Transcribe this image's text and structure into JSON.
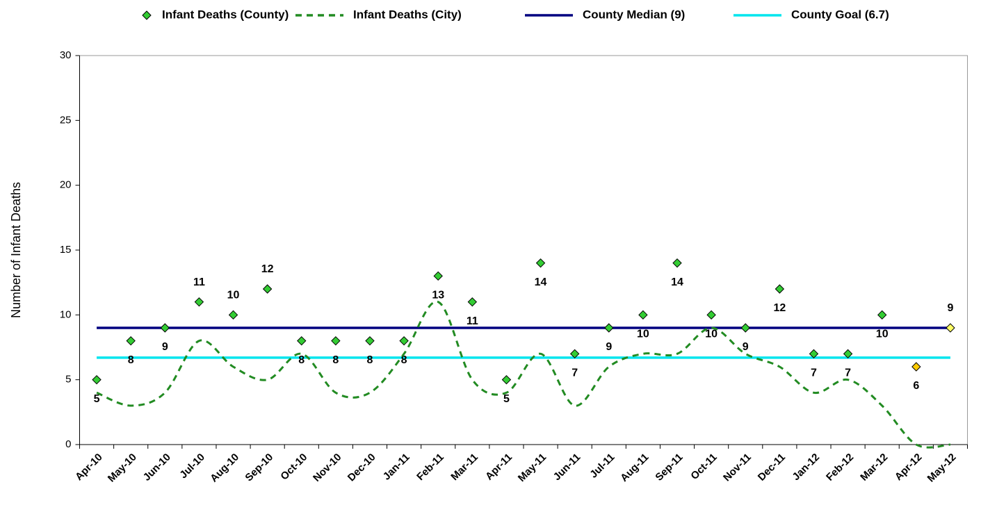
{
  "chart_data": {
    "type": "line",
    "y_label": "Number of Infant Deaths",
    "categories": [
      "Apr-10",
      "May-10",
      "Jun-10",
      "Jul-10",
      "Aug-10",
      "Sep-10",
      "Oct-10",
      "Nov-10",
      "Dec-10",
      "Jan-11",
      "Feb-11",
      "Mar-11",
      "Apr-11",
      "May-11",
      "Jun-11",
      "Jul-11",
      "Aug-11",
      "Sep-11",
      "Oct-11",
      "Nov-11",
      "Dec-11",
      "Jan-12",
      "Feb-12",
      "Mar-12",
      "Apr-12",
      "May-12"
    ],
    "series": [
      {
        "name": "Infant Deaths (County)",
        "style": "markers",
        "color": "#33cc33",
        "point_colors": [
          "#33cc33",
          "#33cc33",
          "#33cc33",
          "#33cc33",
          "#33cc33",
          "#33cc33",
          "#33cc33",
          "#33cc33",
          "#33cc33",
          "#33cc33",
          "#33cc33",
          "#33cc33",
          "#33cc33",
          "#33cc33",
          "#33cc33",
          "#33cc33",
          "#33cc33",
          "#33cc33",
          "#33cc33",
          "#33cc33",
          "#33cc33",
          "#33cc33",
          "#33cc33",
          "#33cc33",
          "#ffcc00",
          "#ffff66"
        ],
        "values": [
          5,
          8,
          9,
          11,
          10,
          12,
          8,
          8,
          8,
          8,
          13,
          11,
          5,
          14,
          7,
          9,
          10,
          14,
          10,
          9,
          12,
          7,
          7,
          10,
          6,
          9
        ]
      },
      {
        "name": "Infant Deaths (City)",
        "style": "dashed",
        "color": "#228B22",
        "values": [
          4,
          3,
          4,
          8,
          6,
          5,
          7,
          4,
          4,
          7,
          11,
          5,
          4,
          7,
          3,
          6,
          7,
          7,
          9,
          7,
          6,
          4,
          5,
          3,
          0,
          0
        ]
      }
    ],
    "reference_lines": [
      {
        "name": "County Median (9)",
        "color": "#000080",
        "value": 9
      },
      {
        "name": "County Goal (6.7)",
        "color": "#00e5ee",
        "value": 6.7
      }
    ],
    "ylim": [
      0,
      30
    ],
    "yticks": [
      0,
      5,
      10,
      15,
      20,
      25,
      30
    ]
  }
}
